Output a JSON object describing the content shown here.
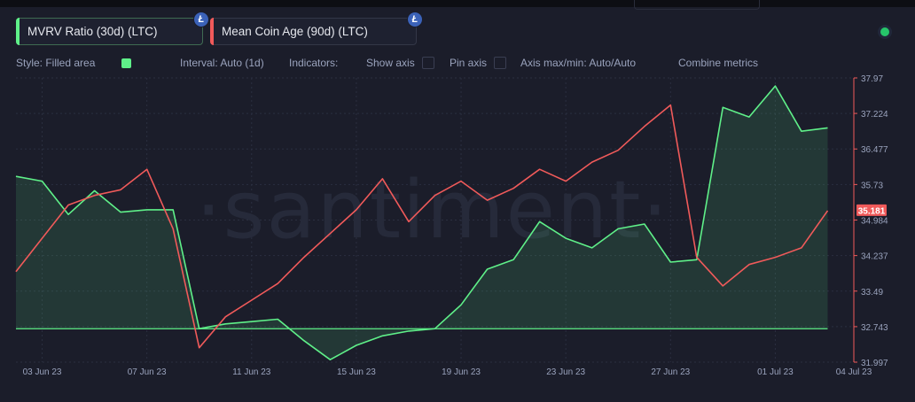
{
  "metrics": [
    {
      "label": "MVRV Ratio (30d) (LTC)",
      "color": "#5ff089",
      "icon": "litecoin-icon",
      "icon_glyph": "Ł"
    },
    {
      "label": "Mean Coin Age (90d) (LTC)",
      "color": "#f05a5a",
      "icon": "litecoin-icon",
      "icon_glyph": "Ł"
    }
  ],
  "settings": {
    "style": "Style: Filled area",
    "interval": "Interval: Auto (1d)",
    "indicators": "Indicators:",
    "show_axis": "Show axis",
    "pin_axis": "Pin axis",
    "axis_maxmin": "Axis max/min: Auto/Auto",
    "combine": "Combine metrics"
  },
  "watermark": "·santiment·",
  "chart_data": {
    "type": "area",
    "x": [
      "02 Jun 23",
      "03 Jun 23",
      "04 Jun 23",
      "05 Jun 23",
      "06 Jun 23",
      "07 Jun 23",
      "08 Jun 23",
      "09 Jun 23",
      "10 Jun 23",
      "11 Jun 23",
      "12 Jun 23",
      "13 Jun 23",
      "14 Jun 23",
      "15 Jun 23",
      "16 Jun 23",
      "17 Jun 23",
      "18 Jun 23",
      "19 Jun 23",
      "20 Jun 23",
      "21 Jun 23",
      "22 Jun 23",
      "23 Jun 23",
      "24 Jun 23",
      "25 Jun 23",
      "26 Jun 23",
      "27 Jun 23",
      "28 Jun 23",
      "29 Jun 23",
      "30 Jun 23",
      "01 Jul 23",
      "02 Jul 23",
      "03 Jul 23",
      "04 Jul 23"
    ],
    "x_tick_labels": [
      "03 Jun 23",
      "07 Jun 23",
      "11 Jun 23",
      "15 Jun 23",
      "19 Jun 23",
      "23 Jun 23",
      "27 Jun 23",
      "01 Jul 23",
      "04 Jul 23"
    ],
    "y_tick_labels": [
      "37.97",
      "37.224",
      "36.477",
      "35.73",
      "34.984",
      "34.237",
      "33.49",
      "32.743",
      "31.997"
    ],
    "ylim": [
      31.997,
      37.97
    ],
    "last_value_label": "35.181",
    "series": [
      {
        "values": [
          35.9,
          35.8,
          35.1,
          35.6,
          35.15,
          35.2,
          35.2,
          32.7,
          32.8,
          32.85,
          32.9,
          32.45,
          32.05,
          32.35,
          32.55,
          32.65,
          32.7,
          33.2,
          33.95,
          34.15,
          34.95,
          34.6,
          34.4,
          34.8,
          34.9,
          34.1,
          34.15,
          37.35,
          37.15,
          37.8,
          36.85,
          36.92,
          null
        ],
        "baseline": 32.7,
        "color": "#5ff089",
        "fill": "rgba(95,240,137,0.13)"
      },
      {
        "values": [
          33.9,
          34.6,
          35.3,
          35.5,
          35.62,
          36.05,
          34.8,
          32.3,
          32.95,
          33.3,
          33.65,
          34.2,
          34.7,
          35.2,
          35.85,
          34.95,
          35.5,
          35.8,
          35.4,
          35.65,
          36.05,
          35.8,
          36.2,
          36.45,
          36.95,
          37.4,
          34.2,
          33.6,
          34.05,
          34.2,
          34.4,
          35.181,
          null
        ],
        "color": "#f05a5a"
      }
    ]
  }
}
